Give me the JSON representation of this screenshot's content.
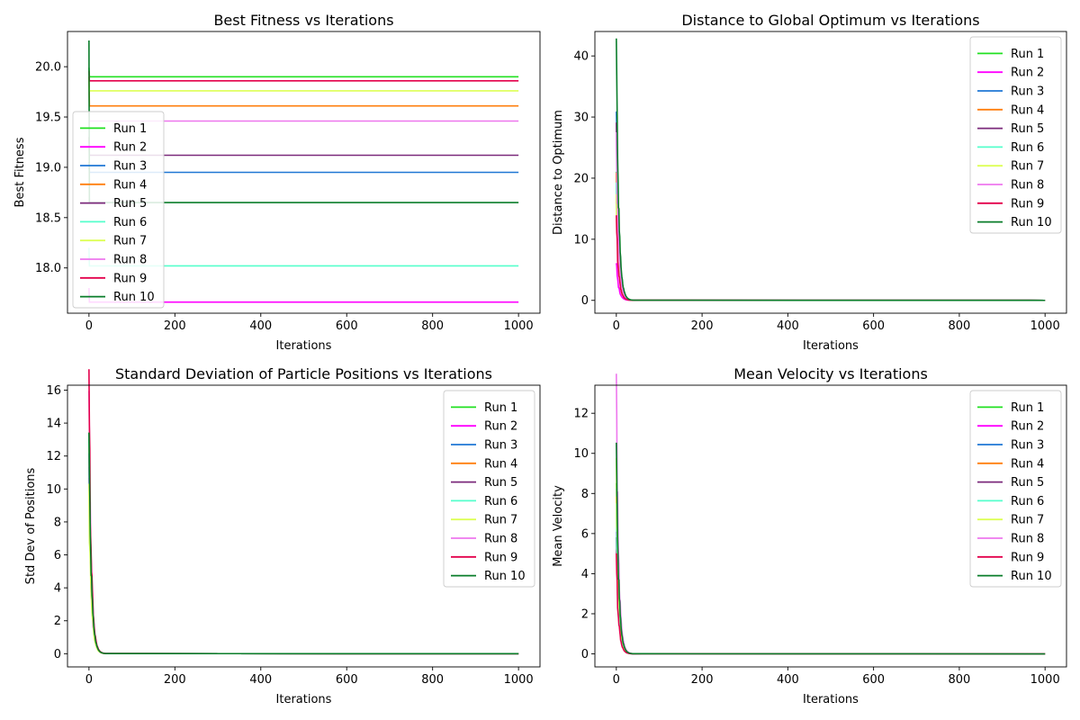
{
  "chart_data": [
    {
      "type": "line",
      "title": "Best Fitness vs Iterations",
      "xlabel": "Iterations",
      "ylabel": "Best Fitness",
      "xlim": [
        -50,
        1050
      ],
      "ylim": [
        17.55,
        20.35
      ],
      "xticks": [
        0,
        200,
        400,
        600,
        800,
        1000
      ],
      "yticks": [
        18.0,
        18.5,
        19.0,
        19.5,
        20.0
      ],
      "ytick_labels": [
        "18.0",
        "18.5",
        "19.0",
        "19.5",
        "20.0"
      ],
      "grid": false,
      "legend": "lower-left",
      "profile": "step",
      "series": [
        {
          "name": "Run 1",
          "color": "#22e022",
          "final": 19.9,
          "start": 19.99
        },
        {
          "name": "Run 2",
          "color": "#ff00ff",
          "final": 17.66,
          "start": 17.8
        },
        {
          "name": "Run 3",
          "color": "#1f77d4",
          "final": 18.95,
          "start": 19.05
        },
        {
          "name": "Run 4",
          "color": "#ff7f0e",
          "final": 19.61,
          "start": 19.9
        },
        {
          "name": "Run 5",
          "color": "#7b2a7b",
          "final": 19.12,
          "start": 19.3
        },
        {
          "name": "Run 6",
          "color": "#55ffcc",
          "final": 18.02,
          "start": 18.2
        },
        {
          "name": "Run 7",
          "color": "#ddff55",
          "final": 19.76,
          "start": 19.8
        },
        {
          "name": "Run 8",
          "color": "#ee77ee",
          "final": 19.46,
          "start": 19.55
        },
        {
          "name": "Run 9",
          "color": "#e3004b",
          "final": 19.86,
          "start": 19.96
        },
        {
          "name": "Run 10",
          "color": "#0a7d2a",
          "final": 18.65,
          "start": 20.26
        }
      ]
    },
    {
      "type": "line",
      "title": "Distance to Global Optimum vs Iterations",
      "xlabel": "Iterations",
      "ylabel": "Distance to Optimum",
      "xlim": [
        -50,
        1050
      ],
      "ylim": [
        -2.1,
        44.0
      ],
      "xticks": [
        0,
        200,
        400,
        600,
        800,
        1000
      ],
      "yticks": [
        0,
        10,
        20,
        30,
        40
      ],
      "ytick_labels": [
        "0",
        "10",
        "20",
        "30",
        "40"
      ],
      "grid": false,
      "legend": "top-right",
      "profile": "decay",
      "series": [
        {
          "name": "Run 1",
          "color": "#22e022",
          "final": 0.0,
          "start": 21.0
        },
        {
          "name": "Run 2",
          "color": "#ff00ff",
          "final": 0.0,
          "start": 6.0
        },
        {
          "name": "Run 3",
          "color": "#1f77d4",
          "final": 0.0,
          "start": 30.0
        },
        {
          "name": "Run 4",
          "color": "#ff7f0e",
          "final": 0.0,
          "start": 20.0
        },
        {
          "name": "Run 5",
          "color": "#7b2a7b",
          "final": 0.0,
          "start": 27.5
        },
        {
          "name": "Run 6",
          "color": "#55ffcc",
          "final": 0.0,
          "start": 18.0
        },
        {
          "name": "Run 7",
          "color": "#ddff55",
          "final": 0.0,
          "start": 16.0
        },
        {
          "name": "Run 8",
          "color": "#ee77ee",
          "final": 0.0,
          "start": 25.0
        },
        {
          "name": "Run 9",
          "color": "#e3004b",
          "final": 0.0,
          "start": 12.5
        },
        {
          "name": "Run 10",
          "color": "#0a7d2a",
          "final": 0.0,
          "start": 41.5
        }
      ]
    },
    {
      "type": "line",
      "title": "Standard Deviation of Particle Positions vs Iterations",
      "xlabel": "Iterations",
      "ylabel": "Std Dev of Positions",
      "xlim": [
        -50,
        1050
      ],
      "ylim": [
        -0.8,
        16.3
      ],
      "xticks": [
        0,
        200,
        400,
        600,
        800,
        1000
      ],
      "yticks": [
        0,
        2,
        4,
        6,
        8,
        10,
        12,
        14,
        16
      ],
      "ytick_labels": [
        "0",
        "2",
        "4",
        "6",
        "8",
        "10",
        "12",
        "14",
        "16"
      ],
      "grid": false,
      "legend": "top-right",
      "profile": "decay",
      "series": [
        {
          "name": "Run 1",
          "color": "#22e022",
          "final": 0.0,
          "start": 13.0
        },
        {
          "name": "Run 2",
          "color": "#ff00ff",
          "final": 0.0,
          "start": 10.5
        },
        {
          "name": "Run 3",
          "color": "#1f77d4",
          "final": 0.0,
          "start": 11.0
        },
        {
          "name": "Run 4",
          "color": "#ff7f0e",
          "final": 0.0,
          "start": 12.0
        },
        {
          "name": "Run 5",
          "color": "#7b2a7b",
          "final": 0.0,
          "start": 11.5
        },
        {
          "name": "Run 6",
          "color": "#55ffcc",
          "final": 0.0,
          "start": 12.5
        },
        {
          "name": "Run 7",
          "color": "#ddff55",
          "final": 0.0,
          "start": 9.5
        },
        {
          "name": "Run 8",
          "color": "#ee77ee",
          "final": 0.0,
          "start": 14.5
        },
        {
          "name": "Run 9",
          "color": "#e3004b",
          "final": 0.0,
          "start": 15.5
        },
        {
          "name": "Run 10",
          "color": "#0a7d2a",
          "final": 0.0,
          "start": 13.0
        }
      ]
    },
    {
      "type": "line",
      "title": "Mean Velocity vs Iterations",
      "xlabel": "Iterations",
      "ylabel": "Mean Velocity",
      "xlim": [
        -50,
        1050
      ],
      "ylim": [
        -0.65,
        13.4
      ],
      "xticks": [
        0,
        200,
        400,
        600,
        800,
        1000
      ],
      "yticks": [
        0,
        2,
        4,
        6,
        8,
        10,
        12
      ],
      "ytick_labels": [
        "0",
        "2",
        "4",
        "6",
        "8",
        "10",
        "12"
      ],
      "grid": false,
      "legend": "top-right",
      "profile": "decay",
      "series": [
        {
          "name": "Run 1",
          "color": "#22e022",
          "final": 0.0,
          "start": 8.5
        },
        {
          "name": "Run 2",
          "color": "#ff00ff",
          "final": 0.0,
          "start": 6.0
        },
        {
          "name": "Run 3",
          "color": "#1f77d4",
          "final": 0.0,
          "start": 8.0
        },
        {
          "name": "Run 4",
          "color": "#ff7f0e",
          "final": 0.0,
          "start": 7.5
        },
        {
          "name": "Run 5",
          "color": "#7b2a7b",
          "final": 0.0,
          "start": 5.5
        },
        {
          "name": "Run 6",
          "color": "#55ffcc",
          "final": 0.0,
          "start": 7.0
        },
        {
          "name": "Run 7",
          "color": "#ddff55",
          "final": 0.0,
          "start": 9.0
        },
        {
          "name": "Run 8",
          "color": "#ee77ee",
          "final": 0.0,
          "start": 12.7
        },
        {
          "name": "Run 9",
          "color": "#e3004b",
          "final": 0.0,
          "start": 4.5
        },
        {
          "name": "Run 10",
          "color": "#0a7d2a",
          "final": 0.0,
          "start": 10.2
        }
      ]
    }
  ]
}
